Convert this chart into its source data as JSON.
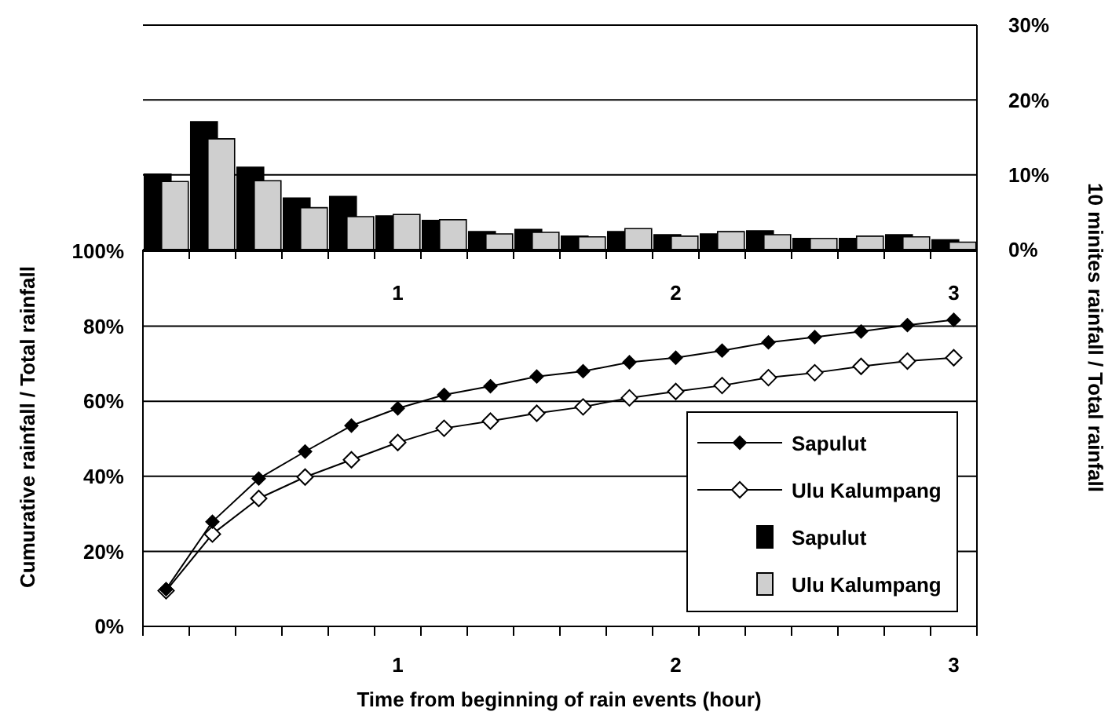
{
  "chart_data": [
    {
      "type": "bar",
      "categories": [
        null,
        null,
        null,
        null,
        null,
        "1",
        null,
        null,
        null,
        null,
        null,
        "2",
        null,
        null,
        null,
        null,
        null,
        "3"
      ],
      "y2label": "10 minites rainfall / Total rainfall",
      "y2lim": [
        0,
        30
      ],
      "y2ticks": [
        {
          "value": 0,
          "label": "0%"
        },
        {
          "value": 10,
          "label": "10%"
        },
        {
          "value": 20,
          "label": "20%"
        },
        {
          "value": 30,
          "label": "30%"
        }
      ],
      "grid": true,
      "legend": "bottom right",
      "series": [
        {
          "name": "Sapulut",
          "color": "#000000",
          "axis": "y2",
          "values": [
            10.1,
            17.1,
            11.0,
            6.9,
            7.1,
            4.5,
            3.9,
            2.4,
            2.7,
            1.8,
            2.4,
            2.0,
            2.1,
            2.5,
            1.5,
            1.5,
            2.0,
            1.3
          ]
        },
        {
          "name": "Ulu Kalumpang",
          "color": "#cfcfcf",
          "axis": "y2",
          "values": [
            9.1,
            14.8,
            9.2,
            5.6,
            4.4,
            4.7,
            4.0,
            2.1,
            2.3,
            1.7,
            2.8,
            1.8,
            2.4,
            2.0,
            1.5,
            1.8,
            1.7,
            1.0
          ]
        }
      ]
    },
    {
      "type": "line",
      "categories": [
        null,
        null,
        null,
        null,
        null,
        "1",
        null,
        null,
        null,
        null,
        null,
        "2",
        null,
        null,
        null,
        null,
        null,
        "3"
      ],
      "xlabel": "Time from beginning of rain events (hour)",
      "ylabel": "Cumurative rainfall / Total rainfall",
      "ylim": [
        0,
        100
      ],
      "yticks": [
        {
          "value": 0,
          "label": "0%"
        },
        {
          "value": 20,
          "label": "20%"
        },
        {
          "value": 40,
          "label": "40%"
        },
        {
          "value": 60,
          "label": "60%"
        },
        {
          "value": 80,
          "label": "80%"
        },
        {
          "value": 100,
          "label": "100%"
        }
      ],
      "grid": true,
      "legend": "bottom right",
      "marker": "diamond",
      "line_style": "solid",
      "series": [
        {
          "name": "Sapulut",
          "color": "#000000",
          "values": [
            9.9,
            27.9,
            39.4,
            46.6,
            53.5,
            58.1,
            61.7,
            64.0,
            66.6,
            68.0,
            70.4,
            71.6,
            73.5,
            75.7,
            77.1,
            78.6,
            80.3,
            81.7
          ]
        },
        {
          "name": "Ulu Kalumpang",
          "color": "#000000",
          "values": [
            9.5,
            24.6,
            34.1,
            39.8,
            44.4,
            49.0,
            52.8,
            54.7,
            56.8,
            58.5,
            60.9,
            62.6,
            64.2,
            66.3,
            67.6,
            69.3,
            70.7,
            71.6
          ]
        }
      ]
    }
  ]
}
